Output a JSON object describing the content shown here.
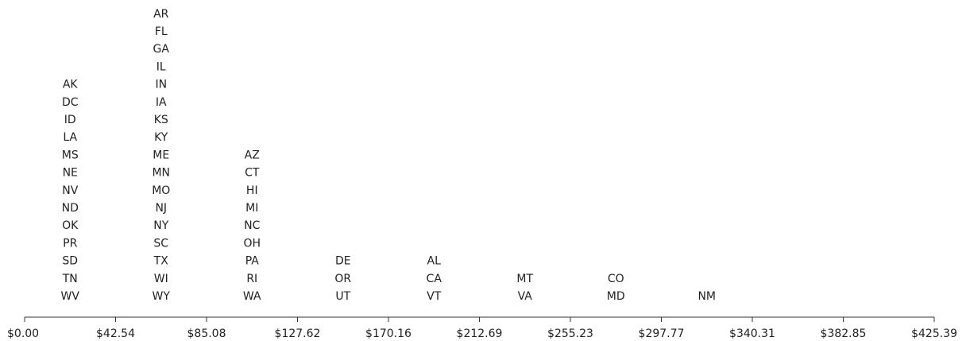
{
  "chart_data": {
    "type": "dot-stack",
    "x_ticks": [
      "$0.00",
      "$42.54",
      "$85.08",
      "$127.62",
      "$170.16",
      "$212.69",
      "$255.23",
      "$297.77",
      "$340.31",
      "$382.85",
      "$425.39"
    ],
    "xlim": [
      0,
      425.39
    ],
    "bins": [
      {
        "center": 21.27,
        "labels": [
          "AK",
          "DC",
          "ID",
          "LA",
          "MS",
          "NE",
          "NV",
          "ND",
          "OK",
          "PR",
          "SD",
          "TN",
          "WV"
        ]
      },
      {
        "center": 63.81,
        "labels": [
          "AR",
          "FL",
          "GA",
          "IL",
          "IN",
          "IA",
          "KS",
          "KY",
          "ME",
          "MN",
          "MO",
          "NJ",
          "NY",
          "SC",
          "TX",
          "WI",
          "WY"
        ]
      },
      {
        "center": 106.35,
        "labels": [
          "AZ",
          "CT",
          "HI",
          "MI",
          "NC",
          "OH",
          "PA",
          "RI",
          "WA"
        ]
      },
      {
        "center": 148.89,
        "labels": [
          "DE",
          "OR",
          "UT"
        ]
      },
      {
        "center": 191.42,
        "labels": [
          "AL",
          "CA",
          "VT"
        ]
      },
      {
        "center": 233.96,
        "labels": [
          "MT",
          "VA"
        ]
      },
      {
        "center": 276.5,
        "labels": [
          "CO",
          "MD"
        ]
      },
      {
        "center": 319.04,
        "labels": [
          "NM"
        ]
      }
    ]
  }
}
